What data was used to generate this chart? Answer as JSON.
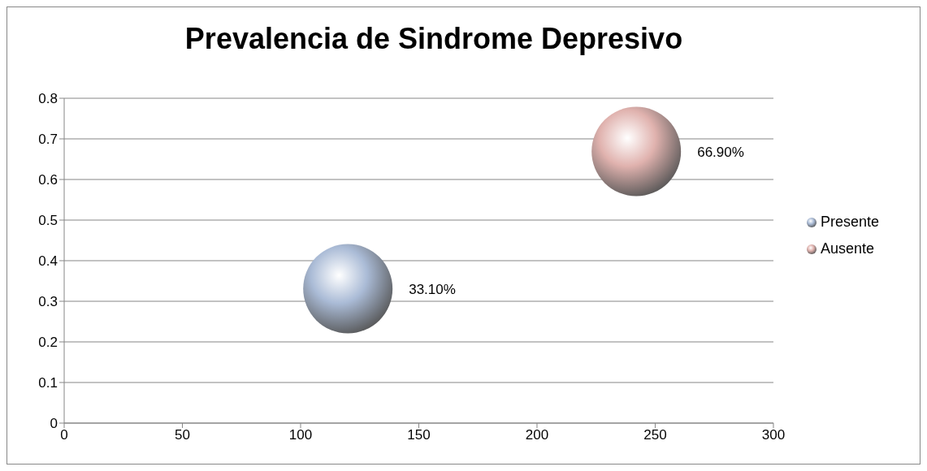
{
  "chart_data": {
    "type": "bubble",
    "title": "Prevalencia de Sindrome Depresivo",
    "series": [
      {
        "name": "Presente",
        "color": "#aabbd6",
        "x": [
          120
        ],
        "values": [
          0.331
        ],
        "sizes": [
          1
        ],
        "value_labels": [
          "33.10%"
        ]
      },
      {
        "name": "Ausente",
        "color": "#e0b2ae",
        "x": [
          242
        ],
        "values": [
          0.669
        ],
        "sizes": [
          1
        ],
        "value_labels": [
          "66.90%"
        ]
      }
    ],
    "xlim": [
      0,
      300
    ],
    "xticks": [
      0,
      50,
      100,
      150,
      200,
      250,
      300
    ],
    "ylim": [
      0,
      0.8
    ],
    "yticks": [
      0,
      0.1,
      0.2,
      0.3,
      0.4,
      0.5,
      0.6,
      0.7,
      0.8
    ],
    "grid": "y",
    "legend": "right"
  }
}
